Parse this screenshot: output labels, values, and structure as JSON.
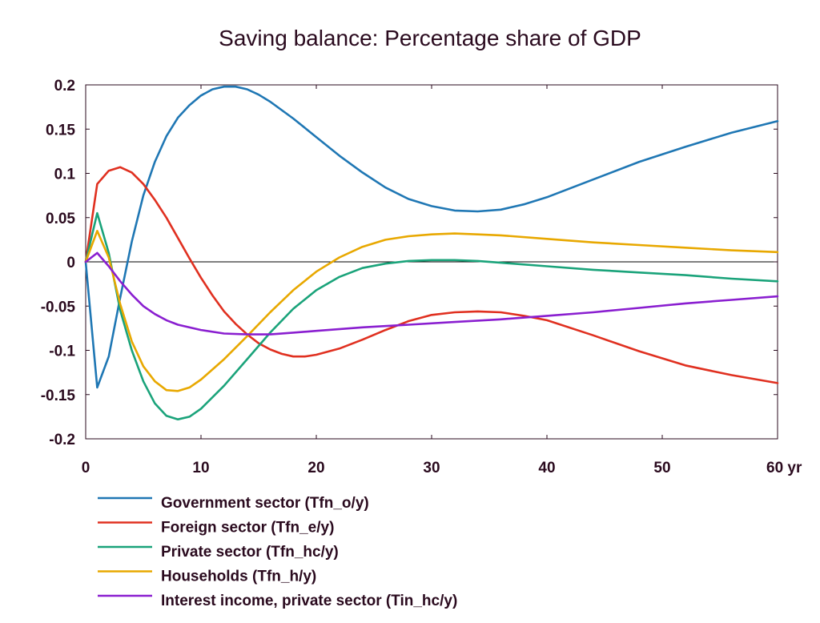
{
  "chart_data": {
    "type": "line",
    "title": "Saving balance: Percentage share of GDP",
    "xlabel": "",
    "ylabel": "",
    "x_unit": "yr",
    "xlim": [
      0,
      60
    ],
    "ylim": [
      -0.2,
      0.2
    ],
    "x_ticks": [
      "0",
      "10",
      "20",
      "30",
      "40",
      "50",
      "60 yr"
    ],
    "y_ticks": [
      "0.2",
      "0.15",
      "0.1",
      "0.05",
      "0",
      "-0.05",
      "-0.1",
      "-0.15",
      "-0.2"
    ],
    "grid": false,
    "legend_position": "bottom",
    "series": [
      {
        "name": "Government sector (Tfn_o/y)",
        "color": "#1f77b4",
        "points": [
          [
            0,
            0
          ],
          [
            1,
            -0.142
          ],
          [
            2,
            -0.107
          ],
          [
            3,
            -0.04
          ],
          [
            4,
            0.023
          ],
          [
            5,
            0.075
          ],
          [
            6,
            0.113
          ],
          [
            7,
            0.142
          ],
          [
            8,
            0.163
          ],
          [
            9,
            0.177
          ],
          [
            10,
            0.188
          ],
          [
            11,
            0.195
          ],
          [
            12,
            0.198
          ],
          [
            13,
            0.198
          ],
          [
            14,
            0.195
          ],
          [
            15,
            0.189
          ],
          [
            16,
            0.181
          ],
          [
            18,
            0.162
          ],
          [
            20,
            0.141
          ],
          [
            22,
            0.12
          ],
          [
            24,
            0.101
          ],
          [
            26,
            0.084
          ],
          [
            28,
            0.071
          ],
          [
            30,
            0.063
          ],
          [
            32,
            0.058
          ],
          [
            34,
            0.057
          ],
          [
            36,
            0.059
          ],
          [
            38,
            0.065
          ],
          [
            40,
            0.073
          ],
          [
            44,
            0.093
          ],
          [
            48,
            0.113
          ],
          [
            52,
            0.13
          ],
          [
            56,
            0.146
          ],
          [
            60,
            0.159
          ]
        ]
      },
      {
        "name": "Foreign sector (Tfn_e/y)",
        "color": "#e03020",
        "points": [
          [
            0,
            0
          ],
          [
            1,
            0.088
          ],
          [
            2,
            0.103
          ],
          [
            3,
            0.107
          ],
          [
            4,
            0.101
          ],
          [
            5,
            0.088
          ],
          [
            6,
            0.07
          ],
          [
            7,
            0.05
          ],
          [
            8,
            0.027
          ],
          [
            9,
            0.004
          ],
          [
            10,
            -0.018
          ],
          [
            11,
            -0.038
          ],
          [
            12,
            -0.056
          ],
          [
            13,
            -0.07
          ],
          [
            14,
            -0.082
          ],
          [
            15,
            -0.092
          ],
          [
            16,
            -0.099
          ],
          [
            17,
            -0.104
          ],
          [
            18,
            -0.107
          ],
          [
            19,
            -0.107
          ],
          [
            20,
            -0.105
          ],
          [
            22,
            -0.098
          ],
          [
            24,
            -0.088
          ],
          [
            26,
            -0.077
          ],
          [
            28,
            -0.067
          ],
          [
            30,
            -0.06
          ],
          [
            32,
            -0.057
          ],
          [
            34,
            -0.056
          ],
          [
            36,
            -0.057
          ],
          [
            38,
            -0.061
          ],
          [
            40,
            -0.066
          ],
          [
            44,
            -0.083
          ],
          [
            48,
            -0.101
          ],
          [
            52,
            -0.117
          ],
          [
            56,
            -0.128
          ],
          [
            60,
            -0.137
          ]
        ]
      },
      {
        "name": "Private sector (Tfn_hc/y)",
        "color": "#1aa37a",
        "points": [
          [
            0,
            0
          ],
          [
            1,
            0.055
          ],
          [
            2,
            0.01
          ],
          [
            3,
            -0.055
          ],
          [
            4,
            -0.1
          ],
          [
            5,
            -0.135
          ],
          [
            6,
            -0.16
          ],
          [
            7,
            -0.174
          ],
          [
            8,
            -0.178
          ],
          [
            9,
            -0.175
          ],
          [
            10,
            -0.166
          ],
          [
            12,
            -0.14
          ],
          [
            14,
            -0.11
          ],
          [
            16,
            -0.08
          ],
          [
            18,
            -0.053
          ],
          [
            20,
            -0.032
          ],
          [
            22,
            -0.017
          ],
          [
            24,
            -0.007
          ],
          [
            26,
            -0.002
          ],
          [
            28,
            0.001
          ],
          [
            30,
            0.002
          ],
          [
            32,
            0.002
          ],
          [
            34,
            0.001
          ],
          [
            36,
            -0.001
          ],
          [
            40,
            -0.005
          ],
          [
            44,
            -0.009
          ],
          [
            48,
            -0.012
          ],
          [
            52,
            -0.015
          ],
          [
            56,
            -0.019
          ],
          [
            60,
            -0.022
          ]
        ]
      },
      {
        "name": "Households (Tfn_h/y)",
        "color": "#e8a800",
        "points": [
          [
            0,
            0
          ],
          [
            1,
            0.035
          ],
          [
            2,
            0.005
          ],
          [
            3,
            -0.048
          ],
          [
            4,
            -0.09
          ],
          [
            5,
            -0.118
          ],
          [
            6,
            -0.135
          ],
          [
            7,
            -0.145
          ],
          [
            8,
            -0.146
          ],
          [
            9,
            -0.142
          ],
          [
            10,
            -0.133
          ],
          [
            12,
            -0.11
          ],
          [
            14,
            -0.084
          ],
          [
            16,
            -0.057
          ],
          [
            18,
            -0.032
          ],
          [
            20,
            -0.011
          ],
          [
            22,
            0.005
          ],
          [
            24,
            0.017
          ],
          [
            26,
            0.025
          ],
          [
            28,
            0.029
          ],
          [
            30,
            0.031
          ],
          [
            32,
            0.032
          ],
          [
            34,
            0.031
          ],
          [
            36,
            0.03
          ],
          [
            40,
            0.026
          ],
          [
            44,
            0.022
          ],
          [
            48,
            0.019
          ],
          [
            52,
            0.016
          ],
          [
            56,
            0.013
          ],
          [
            60,
            0.011
          ]
        ]
      },
      {
        "name": "Interest income, private sector (Tin_hc/y)",
        "color": "#8a1fd0",
        "points": [
          [
            0,
            0
          ],
          [
            1,
            0.01
          ],
          [
            2,
            -0.005
          ],
          [
            3,
            -0.022
          ],
          [
            4,
            -0.037
          ],
          [
            5,
            -0.05
          ],
          [
            6,
            -0.059
          ],
          [
            7,
            -0.066
          ],
          [
            8,
            -0.071
          ],
          [
            10,
            -0.077
          ],
          [
            12,
            -0.081
          ],
          [
            14,
            -0.082
          ],
          [
            16,
            -0.082
          ],
          [
            18,
            -0.08
          ],
          [
            20,
            -0.078
          ],
          [
            24,
            -0.074
          ],
          [
            28,
            -0.071
          ],
          [
            32,
            -0.068
          ],
          [
            36,
            -0.065
          ],
          [
            40,
            -0.061
          ],
          [
            44,
            -0.057
          ],
          [
            48,
            -0.052
          ],
          [
            52,
            -0.047
          ],
          [
            56,
            -0.043
          ],
          [
            60,
            -0.039
          ]
        ]
      }
    ]
  }
}
